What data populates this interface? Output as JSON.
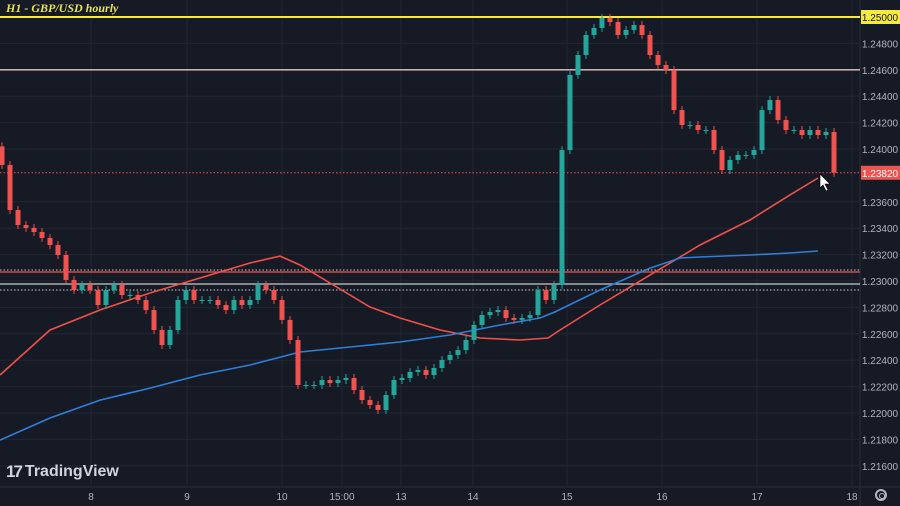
{
  "title": "H1 - GBP/USD hourly",
  "logo_text": "TradingView",
  "colors": {
    "background": "#161a25",
    "up": "#26a69a",
    "down": "#ef5350",
    "ma_red": "#f0504a",
    "ma_blue": "#2f7fd9",
    "level_yellow": "#f5eb3b",
    "level_pink": "#e8c4c4",
    "grid": "#222633"
  },
  "chart_data": {
    "type": "candlestick",
    "title": "H1 - GBP/USD hourly",
    "ylim": [
      1.2145,
      1.2513
    ],
    "y_ticks": [
      "1.25000",
      "1.24800",
      "1.24600",
      "1.24400",
      "1.24200",
      "1.24000",
      "1.23600",
      "1.23400",
      "1.23200",
      "1.23000",
      "1.22800",
      "1.22600",
      "1.22400",
      "1.22200",
      "1.22000",
      "1.21800",
      "1.21600"
    ],
    "x_ticks": [
      "8",
      "9",
      "10",
      "15:00",
      "13",
      "14",
      "15",
      "16",
      "17",
      "18"
    ],
    "closes": [
      1.23879,
      1.23538,
      1.23424,
      1.23402,
      1.23371,
      1.23326,
      1.23273,
      1.23197,
      1.23008,
      1.22932,
      1.2297,
      1.22932,
      1.22818,
      1.22932,
      1.2297,
      1.22894,
      1.22894,
      1.22856,
      1.2278,
      1.22629,
      1.22515,
      1.22629,
      1.22856,
      1.22932,
      1.22856,
      1.22856,
      1.22856,
      1.22818,
      1.2278,
      1.22856,
      1.22818,
      1.22856,
      1.2297,
      1.22932,
      1.22856,
      1.22705,
      1.22553,
      1.22212,
      1.22212,
      1.22212,
      1.2225,
      1.22227,
      1.2225,
      1.22265,
      1.22174,
      1.22098,
      1.22061,
      1.22023,
      1.22136,
      1.2225,
      1.22265,
      1.22311,
      1.22326,
      1.22288,
      1.22341,
      1.22402,
      1.2244,
      1.22477,
      1.22553,
      1.22667,
      1.22742,
      1.22765,
      1.2278,
      1.2272,
      1.22705,
      1.2272,
      1.22742,
      1.22932,
      1.22856,
      1.2297,
      1.23992,
      1.24561,
      1.24712,
      1.24864,
      1.24917,
      1.24992,
      1.24962,
      1.24864,
      1.24902,
      1.24939,
      1.24864,
      1.24712,
      1.24636,
      1.24598,
      1.24295,
      1.24182,
      1.24182,
      1.24144,
      1.24144,
      1.23992,
      1.23841,
      1.23917,
      1.23955,
      1.23955,
      1.23992,
      1.24295,
      1.24371,
      1.2422,
      1.24144,
      1.24144,
      1.24106,
      1.24144,
      1.24106,
      1.24129,
      1.2382
    ],
    "first_open": 1.2402,
    "moving_averages": [
      {
        "color": "red",
        "points": [
          [
            -0.25,
            1.22288
          ],
          [
            6,
            1.22629
          ],
          [
            12.25,
            1.2278
          ],
          [
            18.5,
            1.22909
          ],
          [
            24.75,
            1.23023
          ],
          [
            31,
            1.23136
          ],
          [
            34.75,
            1.23189
          ],
          [
            37.25,
            1.23121
          ],
          [
            41,
            1.22985
          ],
          [
            46,
            1.22803
          ],
          [
            49.75,
            1.2272
          ],
          [
            54.75,
            1.22629
          ],
          [
            59.75,
            1.22568
          ],
          [
            64.75,
            1.22553
          ],
          [
            68.25,
            1.22568
          ],
          [
            69.75,
            1.22629
          ],
          [
            74.75,
            1.22818
          ],
          [
            81,
            1.23045
          ],
          [
            87.25,
            1.23273
          ],
          [
            93.5,
            1.23462
          ],
          [
            98.5,
            1.23652
          ],
          [
            102,
            1.2378
          ]
        ]
      },
      {
        "color": "blue",
        "points": [
          [
            -0.25,
            1.21795
          ],
          [
            6,
            1.21962
          ],
          [
            12.25,
            1.22098
          ],
          [
            18.5,
            1.22189
          ],
          [
            24.75,
            1.22288
          ],
          [
            31,
            1.22364
          ],
          [
            37.25,
            1.22462
          ],
          [
            43.5,
            1.225
          ],
          [
            49.75,
            1.22538
          ],
          [
            56,
            1.22591
          ],
          [
            62.25,
            1.22667
          ],
          [
            67.25,
            1.2272
          ],
          [
            69.1,
            1.22765
          ],
          [
            74.75,
            1.22932
          ],
          [
            81,
            1.23098
          ],
          [
            84.75,
            1.23174
          ],
          [
            87.25,
            1.23182
          ],
          [
            93.5,
            1.23197
          ],
          [
            98.5,
            1.23212
          ],
          [
            102,
            1.23227
          ]
        ]
      }
    ],
    "levels": [
      {
        "price": 1.25,
        "style": "solid",
        "color": "yellow",
        "label": "1.25000"
      },
      {
        "price": 1.246,
        "style": "solid",
        "color": "pink"
      },
      {
        "price": 1.2382,
        "style": "dotted",
        "color": "red",
        "label": "1.23820"
      },
      {
        "price": 1.23083,
        "style": "dotted",
        "color": "white"
      },
      {
        "price": 1.23068,
        "style": "solid",
        "color": "red"
      },
      {
        "price": 1.22977,
        "style": "solid",
        "color": "white"
      },
      {
        "price": 1.22932,
        "style": "dotted",
        "color": "white"
      }
    ],
    "last_price": "1.23820",
    "grid": true
  }
}
